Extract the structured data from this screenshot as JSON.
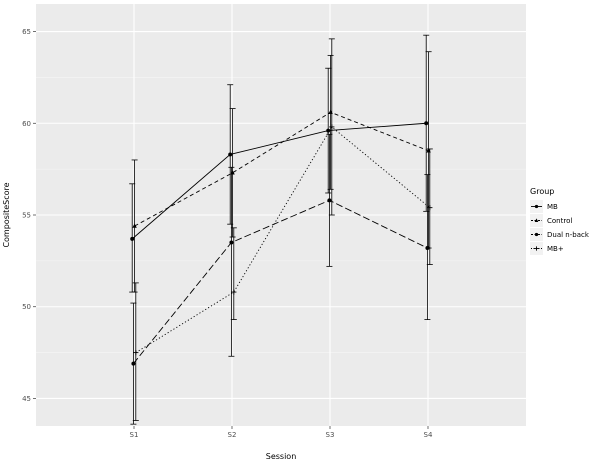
{
  "chart_data": {
    "type": "line",
    "xlabel": "Session",
    "ylabel": "CompositeScore",
    "categories": [
      "S1",
      "S2",
      "S3",
      "S4"
    ],
    "ylim": [
      43.5,
      66.5
    ],
    "yticks": [
      45,
      50,
      55,
      60,
      65
    ],
    "grid": true,
    "legend": {
      "title": "Group",
      "placement": "right"
    },
    "series": [
      {
        "name": "MB",
        "linetype": "solid",
        "shape": "circle",
        "values": [
          53.7,
          58.3,
          59.6,
          60.0
        ],
        "lower": [
          50.8,
          54.5,
          56.2,
          55.2
        ],
        "upper": [
          56.7,
          62.1,
          63.0,
          64.8
        ]
      },
      {
        "name": "Control",
        "linetype": "dashed",
        "shape": "triangle",
        "values": [
          54.4,
          57.3,
          60.6,
          58.5
        ],
        "lower": [
          50.8,
          53.8,
          56.4,
          53.2
        ],
        "upper": [
          58.0,
          60.8,
          63.7,
          63.9
        ]
      },
      {
        "name": "Dual n-back",
        "linetype": "longdash",
        "shape": "circle",
        "values": [
          46.9,
          53.5,
          55.8,
          53.2
        ],
        "lower": [
          43.6,
          47.3,
          52.2,
          49.3
        ],
        "upper": [
          50.2,
          57.6,
          59.4,
          57.2
        ]
      },
      {
        "name": "MB+",
        "linetype": "dotted",
        "shape": "plus",
        "values": [
          47.5,
          50.8,
          59.8,
          55.4
        ],
        "lower": [
          43.8,
          49.3,
          55.0,
          52.3
        ],
        "upper": [
          51.3,
          54.3,
          64.6,
          58.6
        ]
      }
    ]
  }
}
